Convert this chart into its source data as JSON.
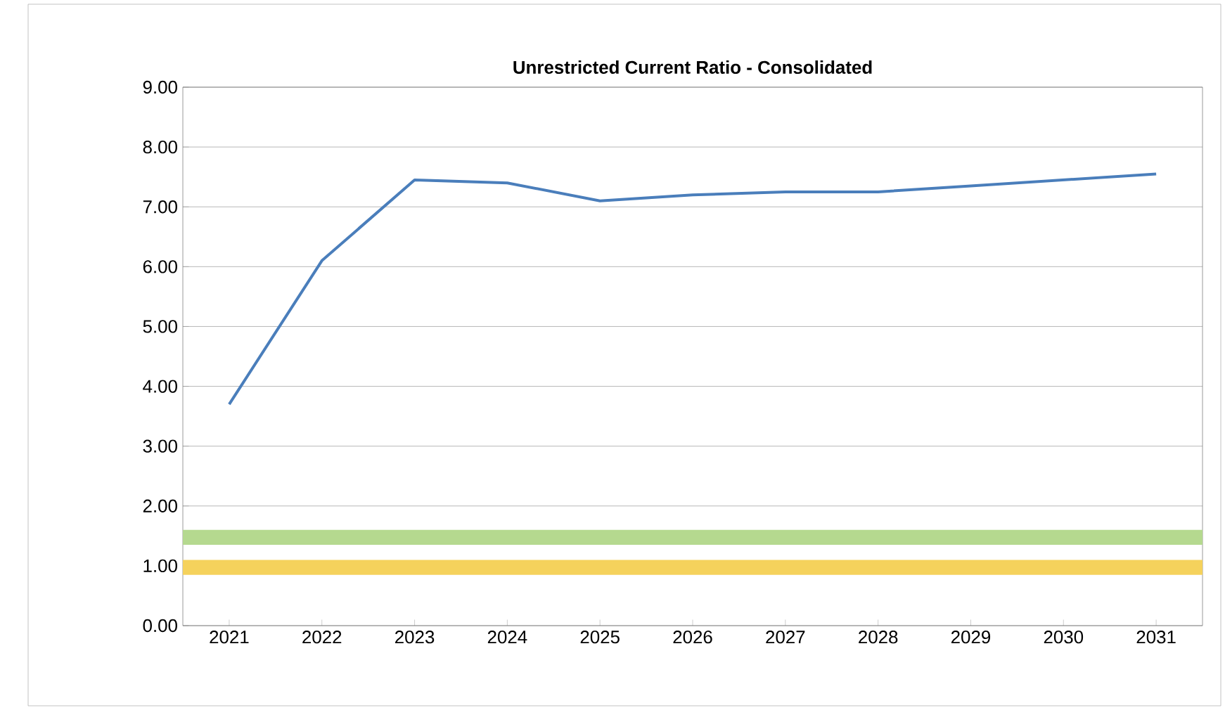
{
  "chart_data": {
    "type": "line",
    "title": "Unrestricted Current Ratio - Consolidated",
    "categories": [
      "2021",
      "2022",
      "2023",
      "2024",
      "2025",
      "2026",
      "2027",
      "2028",
      "2029",
      "2030",
      "2031"
    ],
    "series": [
      {
        "color": "#4a7ebb",
        "values": [
          3.7,
          6.1,
          7.45,
          7.4,
          7.1,
          7.2,
          7.25,
          7.25,
          7.35,
          7.45,
          7.55
        ]
      }
    ],
    "bands": [
      {
        "axis": "y",
        "from": 1.35,
        "to": 1.6,
        "color": "#b5d98f"
      },
      {
        "axis": "y",
        "from": 0.85,
        "to": 1.1,
        "color": "#f5d25c"
      }
    ],
    "ylim": [
      0,
      9
    ],
    "yticks": [
      {
        "value": 0,
        "label": "0.00"
      },
      {
        "value": 1,
        "label": "1.00"
      },
      {
        "value": 2,
        "label": "2.00"
      },
      {
        "value": 3,
        "label": "3.00"
      },
      {
        "value": 4,
        "label": "4.00"
      },
      {
        "value": 5,
        "label": "5.00"
      },
      {
        "value": 6,
        "label": "6.00"
      },
      {
        "value": 7,
        "label": "7.00"
      },
      {
        "value": 8,
        "label": "8.00"
      },
      {
        "value": 9,
        "label": "9.00"
      }
    ],
    "grid": "y",
    "marker": "none",
    "line_style": "solid"
  }
}
